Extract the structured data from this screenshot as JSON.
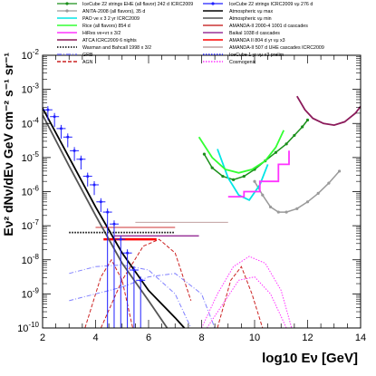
{
  "chart_data": {
    "type": "line",
    "title": "",
    "xlabel": "log10 Eν [GeV]",
    "ylabel": "Eν² dNν/dEν GeV cm⁻² s⁻¹ sr⁻¹",
    "xlim": [
      2,
      14
    ],
    "ylim_log10": [
      -10,
      -2
    ],
    "yscale": "log",
    "x_ticks": [
      "2",
      "4",
      "6",
      "8",
      "10",
      "12",
      "14"
    ],
    "y_ticks": [
      "10-10",
      "10-9",
      "10-8",
      "10-7",
      "10-6",
      "10-5",
      "10-4",
      "10-3",
      "10-2"
    ],
    "grid": false,
    "legend_placement": "top",
    "legend_left": [
      {
        "label": "IceCube 22 strings EHE (all flavor) 242 d ICRC2009",
        "color": "#1a8f1a",
        "style": "solid-marker"
      },
      {
        "label": "ANITA-2008 (all flavors), 35 d",
        "color": "#9a9a9a",
        "style": "solid-marker"
      },
      {
        "label": "PAO νe x 3 2 yr ICRC2009",
        "color": "#00e5e5",
        "style": "solid"
      },
      {
        "label": "Rice (all flavors) 854 d",
        "color": "#33ff33",
        "style": "solid"
      },
      {
        "label": "HiRes νe+ντ x 3/2",
        "color": "#ff33ff",
        "style": "solid"
      },
      {
        "label": "ATCA ICRC2009 6 nights",
        "color": "#8b1a5a",
        "style": "solid"
      },
      {
        "label": "Waxman and Bahcall 1998 x 3/2",
        "color": "#000000",
        "style": "dotted"
      },
      {
        "label": "GRB",
        "color": "#8080ff",
        "style": "dashdot"
      },
      {
        "label": "AGN",
        "color": "#cc2222",
        "style": "dashed"
      }
    ],
    "legend_right": [
      {
        "label": "IceCube 22 strings ICRC2009 νμ 276 d",
        "color": "#2020ff",
        "style": "solid-marker"
      },
      {
        "label": "Atmospheric νμ max",
        "color": "#000000",
        "style": "solid"
      },
      {
        "label": "Atmospheric νμ min",
        "color": "#555555",
        "style": "solid"
      },
      {
        "label": "AMANDA-II 2000-4 1001 d cascades",
        "color": "#cc3333",
        "style": "solid"
      },
      {
        "label": "Baikal 1038 d cascades",
        "color": "#993399",
        "style": "solid"
      },
      {
        "label": "AMANDA II 804 d yr νμ x3",
        "color": "#ff0000",
        "style": "solid"
      },
      {
        "label": "AMANDA-II 507 d UHE cascades ICRC2009",
        "color": "#c0a0a0",
        "style": "solid"
      },
      {
        "label": "IceCube 1 yr νμ x3 prelim",
        "color": "#3333ff",
        "style": "dotted"
      },
      {
        "label": "Cosmogenic",
        "color": "#ff33ff",
        "style": "dotted"
      }
    ],
    "series": [
      {
        "name": "IceCube 22 strings EHE (all flavor) 242 d ICRC2009",
        "color": "#1a8f1a",
        "marker": true,
        "x": [
          8.1,
          8.4,
          8.8,
          9.2,
          9.6,
          10.0,
          10.4,
          10.8,
          11.2,
          11.5,
          11.8,
          12.0
        ],
        "y": [
          -4.9,
          -5.3,
          -5.55,
          -5.65,
          -5.55,
          -5.35,
          -5.1,
          -4.85,
          -4.6,
          -4.35,
          -4.1,
          -3.9
        ]
      },
      {
        "name": "ANITA-2008 (all flavors), 35 d",
        "color": "#9a9a9a",
        "marker": true,
        "x": [
          10.0,
          10.3,
          10.6,
          10.9,
          11.2,
          11.6,
          12.0,
          12.4,
          12.8,
          13.2
        ],
        "y": [
          -5.7,
          -6.1,
          -6.45,
          -6.6,
          -6.6,
          -6.5,
          -6.3,
          -6.05,
          -5.75,
          -5.4
        ]
      },
      {
        "name": "PAO νe x 3 2 yr ICRC2009",
        "color": "#00e5e5",
        "marker": false,
        "x": [
          8.6,
          9.0,
          9.4,
          9.8,
          10.2,
          10.5
        ],
        "y": [
          -4.75,
          -5.6,
          -6.1,
          -6.25,
          -5.8,
          -5.2
        ]
      },
      {
        "name": "Rice (all flavors) 854 d",
        "color": "#33ff33",
        "marker": false,
        "x": [
          7.9,
          8.4,
          8.9,
          9.4,
          9.9,
          10.4,
          10.8,
          11.1
        ],
        "y": [
          -4.4,
          -5.0,
          -5.35,
          -5.45,
          -5.35,
          -5.1,
          -4.7,
          -4.2
        ]
      },
      {
        "name": "HiRes νe+ντ x 3/2",
        "color": "#ff33ff",
        "marker": false,
        "x": [
          9.0,
          9.6,
          9.6,
          10.2,
          10.2,
          10.9,
          10.9,
          11.3,
          11.3
        ],
        "y": [
          -6.15,
          -6.15,
          -6.0,
          -6.0,
          -5.7,
          -5.7,
          -5.2,
          -5.2,
          -4.8
        ]
      },
      {
        "name": "ATCA ICRC2009 6 nights",
        "color": "#8b1a5a",
        "marker": false,
        "x": [
          11.6,
          11.9,
          12.2,
          12.6,
          13.0,
          13.4,
          13.8,
          14.0
        ],
        "y": [
          -3.2,
          -3.6,
          -3.85,
          -4.0,
          -4.05,
          -3.95,
          -3.7,
          -3.5
        ]
      },
      {
        "name": "Atmospheric νμ max",
        "color": "#000000",
        "marker": false,
        "x": [
          2.0,
          3.0,
          4.0,
          5.0,
          6.0,
          7.0,
          7.35
        ],
        "y": [
          -3.55,
          -5.0,
          -6.45,
          -7.8,
          -8.9,
          -9.7,
          -10.0
        ]
      },
      {
        "name": "Atmospheric νμ min",
        "color": "#555555",
        "marker": false,
        "x": [
          2.0,
          3.0,
          4.0,
          5.0,
          6.0,
          6.7
        ],
        "y": [
          -3.75,
          -5.25,
          -6.7,
          -8.1,
          -9.2,
          -10.0
        ]
      },
      {
        "name": "Waxman and Bahcall 1998 x 3/2",
        "color": "#000000",
        "style": "dotted",
        "x": [
          3.0,
          7.0
        ],
        "y": [
          -7.2,
          -7.2
        ]
      }
    ],
    "horizontal_limits": [
      {
        "name": "AMANDA II 804 d yr νμ x3",
        "color": "#ff0000",
        "x": [
          4.3,
          6.3
        ],
        "y": -7.4,
        "width": 2.5
      },
      {
        "name": "AMANDA-II 2000-4 1001 d cascades",
        "color": "#cc3333",
        "x": [
          4.0,
          7.0
        ],
        "y": -7.05,
        "width": 1
      },
      {
        "name": "Baikal 1038 d cascades",
        "color": "#993399",
        "x": [
          4.7,
          7.9
        ],
        "y": -7.3,
        "width": 1.5
      },
      {
        "name": "AMANDA-II 507 d UHE cascades ICRC2009",
        "color": "#c0a0a0",
        "x": [
          5.5,
          9.0
        ],
        "y": -6.9,
        "width": 1
      }
    ],
    "icecube_points": {
      "name": "IceCube 22 strings ICRC2009 νμ 276 d",
      "color": "#2020ff",
      "x": [
        2.2,
        2.45,
        2.7,
        2.95,
        3.2,
        3.45,
        3.7,
        3.95,
        4.2,
        4.45,
        4.7,
        4.95,
        5.2,
        5.45,
        5.7
      ],
      "y": [
        -3.6,
        -3.8,
        -4.15,
        -4.4,
        -4.8,
        -5.05,
        -5.55,
        -5.8,
        -6.3,
        -6.6,
        -6.95,
        -7.4,
        -7.8,
        -8.3,
        -8.6
      ]
    },
    "model_curves": [
      {
        "name": "AGN",
        "color": "#cc2222",
        "style": "dashed",
        "x": [
          4.2,
          5.0,
          5.8,
          6.4,
          7.0,
          7.6
        ],
        "y": [
          -10,
          -8.6,
          -7.6,
          -7.4,
          -7.8,
          -9.2
        ]
      },
      {
        "name": "AGN",
        "color": "#cc2222",
        "style": "dashed",
        "x": [
          3.6,
          4.2,
          4.6,
          5.0,
          5.4
        ],
        "y": [
          -10,
          -8.5,
          -8.0,
          -8.6,
          -10
        ]
      },
      {
        "name": "AGN",
        "color": "#cc2222",
        "style": "dashed",
        "x": [
          8.6,
          9.1,
          9.5,
          9.9,
          10.3
        ],
        "y": [
          -10,
          -8.6,
          -8.2,
          -9.0,
          -10
        ]
      },
      {
        "name": "GRB",
        "color": "#8080ff",
        "style": "dashdot",
        "x": [
          3.0,
          4.0,
          5.0,
          6.0,
          7.0,
          7.6
        ],
        "y": [
          -8.4,
          -8.2,
          -8.15,
          -8.3,
          -9.0,
          -10
        ]
      },
      {
        "name": "GRB",
        "color": "#8080ff",
        "style": "dashdot",
        "x": [
          3.0,
          4.0,
          5.0,
          6.0,
          7.0,
          8.0,
          8.5
        ],
        "y": [
          -9.2,
          -9.0,
          -8.8,
          -8.5,
          -8.4,
          -9.0,
          -10
        ]
      },
      {
        "name": "Cosmogenic",
        "color": "#ff33ff",
        "style": "dotted",
        "x": [
          8.0,
          8.6,
          9.2,
          9.8,
          10.4,
          11.0,
          11.4
        ],
        "y": [
          -10,
          -9.0,
          -8.2,
          -7.9,
          -8.1,
          -8.9,
          -10
        ]
      },
      {
        "name": "Cosmogenic",
        "color": "#ff33ff",
        "style": "dotted",
        "x": [
          8.2,
          8.8,
          9.4,
          10.0,
          10.6,
          11.2
        ],
        "y": [
          -10,
          -9.3,
          -8.6,
          -8.5,
          -9.0,
          -10
        ]
      }
    ]
  }
}
